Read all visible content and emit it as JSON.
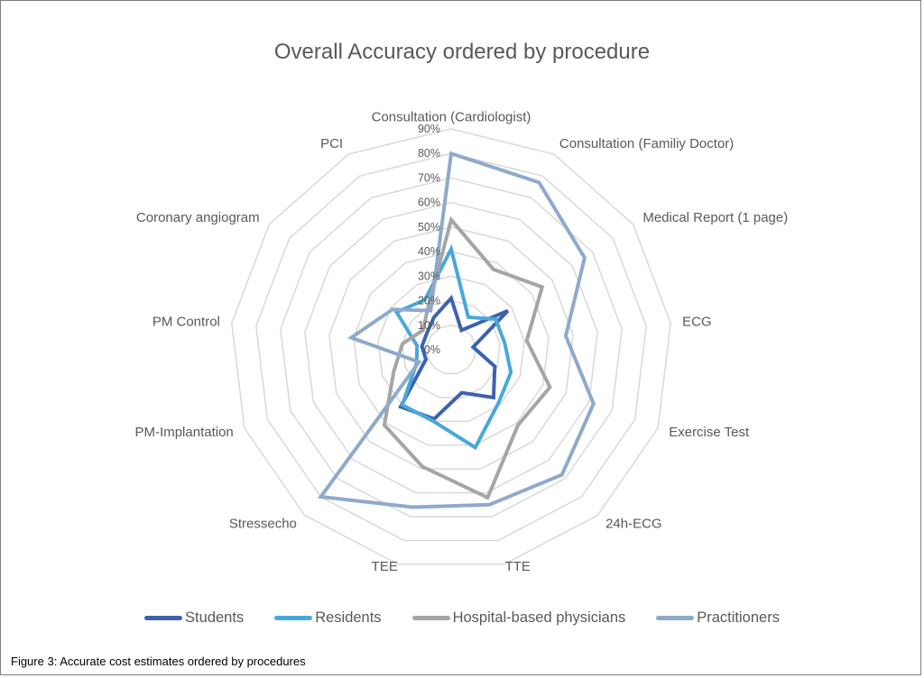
{
  "chart_data": {
    "type": "radar",
    "title": "Overall Accuracy ordered by procedure",
    "categories": [
      "Consultation (Cardiologist)",
      "Consultation (Familiy Doctor)",
      "Medical Report (1 page)",
      "ECG",
      "Exercise Test",
      "24h-ECG",
      "TTE",
      "TEE",
      "Stressecho",
      "PM-Implantation",
      "PM Control",
      "Coronary angiogram",
      "PCI"
    ],
    "rlim": [
      0,
      90
    ],
    "ticks": [
      "0%",
      "10%",
      "20%",
      "30%",
      "40%",
      "50%",
      "60%",
      "70%",
      "80%",
      "90%"
    ],
    "grid": true,
    "legend_position": "bottom",
    "series": [
      {
        "name": "Students",
        "color": "#3d62ad",
        "values": [
          21,
          9,
          28,
          9,
          19,
          26,
          18,
          29,
          31,
          11,
          12,
          12,
          15
        ]
      },
      {
        "name": "Residents",
        "color": "#4aa8d8",
        "values": [
          41,
          15,
          22,
          22,
          26,
          29,
          41,
          30,
          30,
          15,
          14,
          27,
          23
        ]
      },
      {
        "name": "Hospital-based physicians",
        "color": "#a5a5a5",
        "values": [
          53,
          37,
          45,
          31,
          43,
          41,
          62,
          49,
          41,
          25,
          20,
          14,
          20
        ]
      },
      {
        "name": "Practitioners",
        "color": "#8eaacb",
        "values": [
          80,
          77,
          66,
          47,
          62,
          68,
          65,
          66,
          80,
          14,
          41,
          29,
          18
        ]
      }
    ]
  },
  "caption": "Figure 3: Accurate cost estimates ordered by procedures"
}
